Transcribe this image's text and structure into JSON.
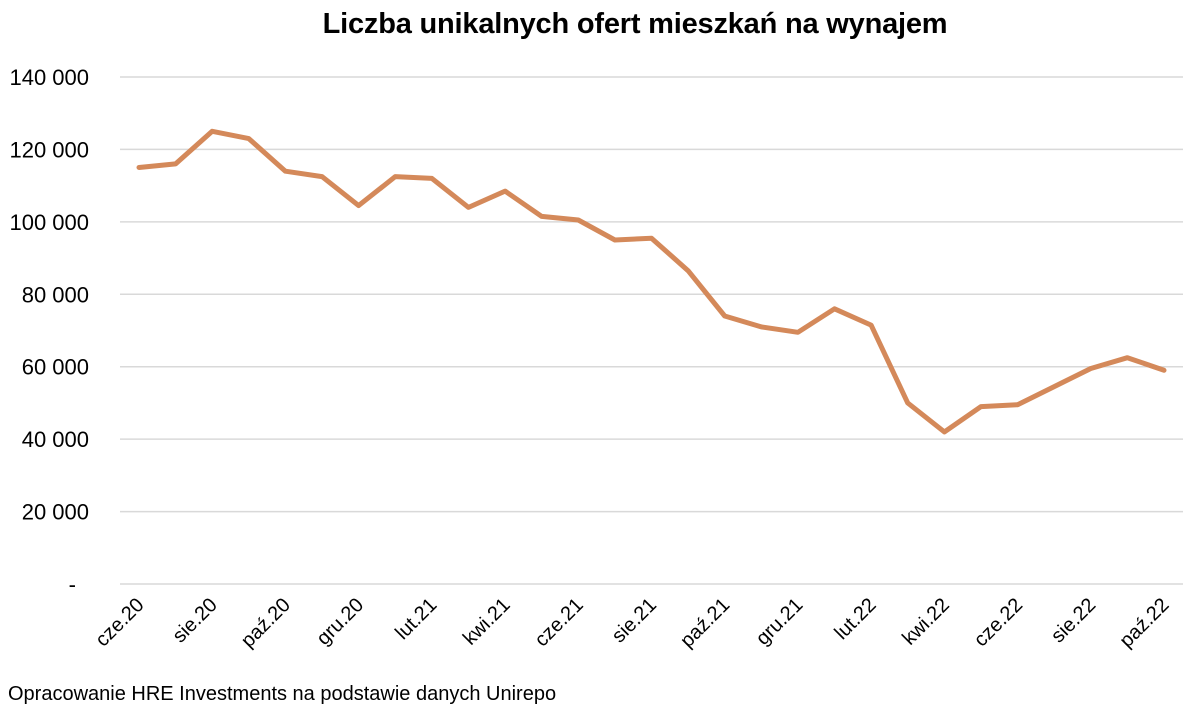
{
  "chart_data": {
    "type": "line",
    "title": "Liczba unikalnych ofert mieszkań na wynajem",
    "xlabel": "",
    "ylabel": "",
    "ylim": [
      0,
      140000
    ],
    "grid": true,
    "legend": null,
    "y_ticks": [
      0,
      20000,
      40000,
      60000,
      80000,
      100000,
      120000,
      140000
    ],
    "y_tick_labels": [
      "-",
      "20 000",
      "40 000",
      "60 000",
      "80 000",
      "100 000",
      "120 000",
      "140 000"
    ],
    "x": [
      "cze.20",
      "lip.20",
      "sie.20",
      "wrz.20",
      "paź.20",
      "lis.20",
      "gru.20",
      "sty.21",
      "lut.21",
      "mar.21",
      "kwi.21",
      "maj.21",
      "cze.21",
      "lip.21",
      "sie.21",
      "wrz.21",
      "paź.21",
      "lis.21",
      "gru.21",
      "sty.22",
      "lut.22",
      "mar.22",
      "kwi.22",
      "maj.22",
      "cze.22",
      "lip.22",
      "sie.22",
      "wrz.22",
      "paź.22"
    ],
    "x_tick_labels": [
      "cze.20",
      "sie.20",
      "paź.20",
      "gru.20",
      "lut.21",
      "kwi.21",
      "cze.21",
      "sie.21",
      "paź.21",
      "gru.21",
      "lut.22",
      "kwi.22",
      "cze.22",
      "sie.22",
      "paź.22"
    ],
    "series": [
      {
        "name": "Liczba unikalnych ofert",
        "color": "#D4895A",
        "values": [
          115000,
          116000,
          125000,
          123000,
          114000,
          112500,
          104500,
          112500,
          112000,
          104000,
          108500,
          101500,
          100500,
          95000,
          95500,
          86500,
          74000,
          71000,
          69500,
          76000,
          71500,
          50000,
          42000,
          49000,
          49500,
          54500,
          59500,
          62500,
          59000
        ]
      }
    ],
    "source": "Opracowanie HRE Investments na podstawie danych Unirepo"
  },
  "colors": {
    "line": "#D4895A",
    "grid": "#D9D9D9"
  }
}
